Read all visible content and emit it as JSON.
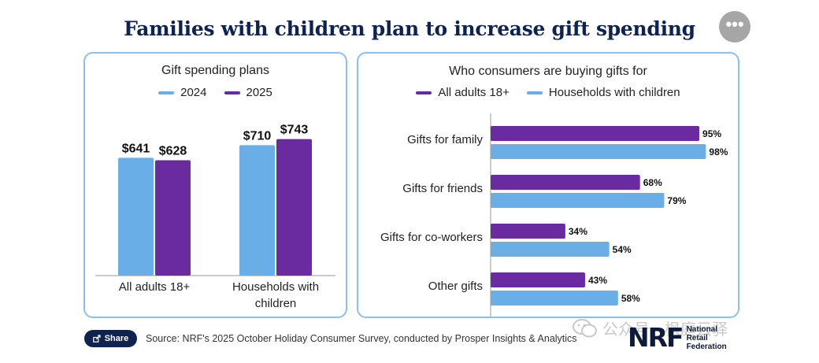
{
  "header": {
    "title": "Families with children plan to increase gift spending",
    "more_icon": "more-horizontal-icon",
    "more_glyph": "•••"
  },
  "colors": {
    "y2024": "#6aaee8",
    "y2025": "#6a2aa0",
    "title_navy": "#0e2350",
    "panel_border": "#8cc0e8"
  },
  "chart_data": [
    {
      "type": "bar",
      "title": "Gift spending plans",
      "categories": [
        "All adults 18+",
        "Households with children"
      ],
      "series": [
        {
          "name": "2024",
          "values": [
            641,
            710
          ],
          "labels": [
            "$641",
            "$710"
          ],
          "color": "#6aaee8"
        },
        {
          "name": "2025",
          "values": [
            628,
            743
          ],
          "labels": [
            "$628",
            "$743"
          ],
          "color": "#6a2aa0"
        }
      ],
      "xlabel": "",
      "ylabel": "",
      "ylim": [
        0,
        900
      ],
      "grid": false,
      "legend": "top-center"
    },
    {
      "type": "bar",
      "orientation": "horizontal",
      "title": "Who consumers are buying gifts for",
      "categories": [
        "Gifts for family",
        "Gifts for friends",
        "Gifts for co-workers",
        "Other gifts"
      ],
      "series": [
        {
          "name": "All adults 18+",
          "values": [
            95,
            68,
            34,
            43
          ],
          "color": "#6a2aa0"
        },
        {
          "name": "Households with children",
          "values": [
            98,
            79,
            54,
            58
          ],
          "color": "#6aaee8"
        }
      ],
      "value_suffix": "%",
      "xlabel": "",
      "ylabel": "",
      "xlim": [
        0,
        100
      ],
      "grid": false,
      "legend": "top-center"
    }
  ],
  "footer": {
    "share_label": "Share",
    "share_icon": "share-icon",
    "source": "Source: NRF's 2025 October Holiday Consumer Survey, conducted by Prosper Insights & Analytics",
    "watermark_text": "公众号 · 枫庭云驿",
    "watermark_icon": "wechat-icon",
    "logo_mark": "NRF",
    "logo_line1": "National",
    "logo_line2": "Retail",
    "logo_line3": "Federation"
  }
}
